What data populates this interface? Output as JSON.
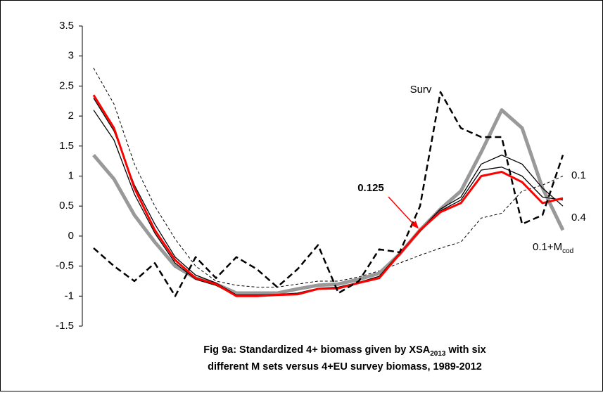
{
  "chart_data": {
    "type": "line",
    "title_parts": [
      "Fig  9a: Standardized 4+ biomass given by XSA",
      "2013",
      "  with six",
      "different M sets versus 4+EU survey biomass, 1989-2012"
    ],
    "categories": [
      null,
      null,
      null,
      null,
      null,
      null,
      null,
      null,
      null,
      null,
      null,
      null,
      null,
      null,
      null,
      null,
      null,
      null,
      null,
      null,
      null,
      null,
      null,
      null
    ],
    "ylim": [
      -1.5,
      3.5
    ],
    "yticks": [
      -1.5,
      -1,
      -0.5,
      0,
      0.5,
      1,
      1.5,
      2,
      2.5,
      3,
      3.5
    ],
    "series": [
      {
        "color": "#000000",
        "width": 1,
        "dash": "4 3",
        "values": [
          2.8,
          2.2,
          1.2,
          0.5,
          -0.05,
          -0.5,
          -0.75,
          -0.82,
          -0.85,
          -0.85,
          -0.8,
          -0.75,
          -0.75,
          -0.68,
          -0.58,
          -0.45,
          -0.32,
          -0.2,
          -0.1,
          0.3,
          0.38,
          0.75,
          0.85,
          1.0
        ]
      },
      {
        "color": "#999999",
        "width": 5,
        "dash": "none",
        "values": [
          1.35,
          0.95,
          0.35,
          -0.1,
          -0.5,
          -0.7,
          -0.8,
          -0.95,
          -0.95,
          -0.95,
          -0.88,
          -0.82,
          -0.8,
          -0.72,
          -0.62,
          -0.3,
          0.1,
          0.45,
          0.75,
          1.4,
          2.1,
          1.8,
          0.8,
          0.1
        ]
      },
      {
        "color": "#000000",
        "width": 1.3,
        "dash": "none",
        "values": [
          2.3,
          1.75,
          0.85,
          0.2,
          -0.35,
          -0.65,
          -0.78,
          -0.98,
          -0.98,
          -0.97,
          -0.95,
          -0.87,
          -0.85,
          -0.77,
          -0.67,
          -0.28,
          0.1,
          0.45,
          0.65,
          1.2,
          1.35,
          1.2,
          0.8,
          0.5
        ]
      },
      {
        "color": "#000000",
        "width": 1.3,
        "dash": "none",
        "values": [
          2.1,
          1.6,
          0.7,
          0.05,
          -0.45,
          -0.72,
          -0.82,
          -1.0,
          -1.0,
          -0.98,
          -0.97,
          -0.88,
          -0.87,
          -0.78,
          -0.7,
          -0.3,
          0.08,
          0.42,
          0.6,
          1.1,
          1.15,
          1.0,
          0.65,
          0.6
        ]
      },
      {
        "color": "#ff0000",
        "width": 3,
        "dash": "none",
        "values": [
          2.35,
          1.8,
          0.8,
          0.1,
          -0.4,
          -0.7,
          -0.8,
          -1.0,
          -1.0,
          -0.98,
          -0.97,
          -0.88,
          -0.87,
          -0.78,
          -0.7,
          -0.3,
          0.1,
          0.4,
          0.55,
          1.0,
          1.07,
          0.9,
          0.55,
          0.63
        ]
      },
      {
        "color": "#000000",
        "width": 2.5,
        "dash": "9 5",
        "values": [
          -0.2,
          -0.5,
          -0.75,
          -0.45,
          -1.0,
          -0.35,
          -0.7,
          -0.35,
          -0.55,
          -0.85,
          -0.55,
          -0.15,
          -0.95,
          -0.75,
          -0.22,
          -0.27,
          0.5,
          2.4,
          1.8,
          1.65,
          1.65,
          0.2,
          0.35,
          1.35
        ]
      }
    ],
    "annotations": [
      {
        "text": "Surv"
      },
      {
        "text": "0.1"
      },
      {
        "text": "0.4"
      },
      {
        "text": "0.1+M",
        "sub": "cod"
      },
      {
        "text": "0.125",
        "color": "#ff0000"
      }
    ]
  }
}
